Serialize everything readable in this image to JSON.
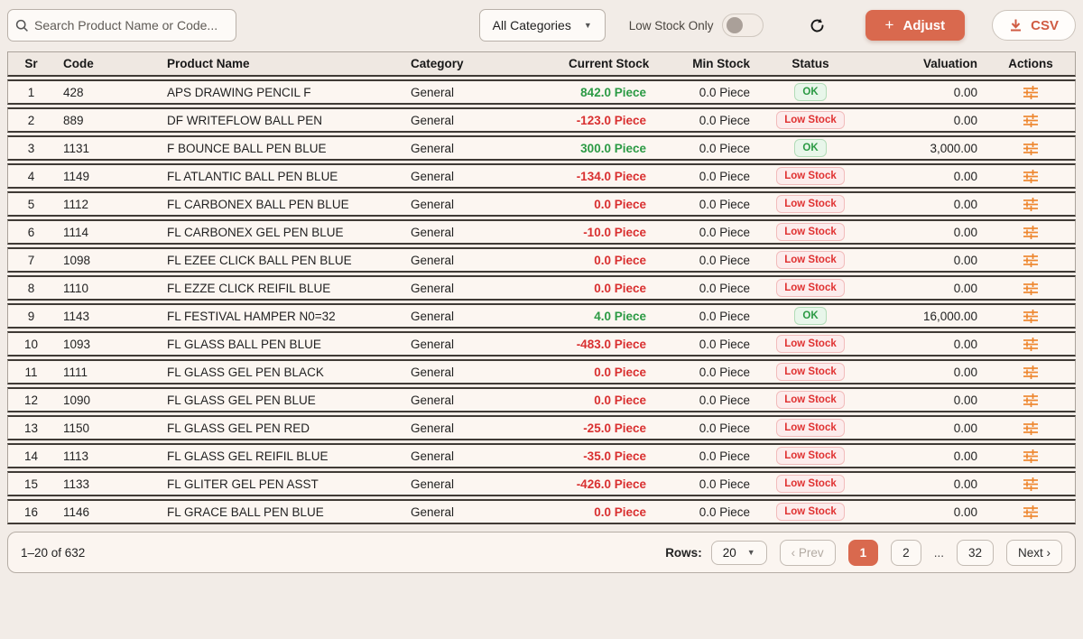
{
  "toolbar": {
    "search_placeholder": "Search Product Name or Code...",
    "category_filter_value": "All Categories",
    "low_stock_toggle_label": "Low Stock Only",
    "adjust_button_label": "Adjust",
    "adjust_button_plus": "+",
    "csv_button_label": "CSV"
  },
  "table": {
    "columns": [
      "Sr",
      "Code",
      "Product Name",
      "Category",
      "Current Stock",
      "Min Stock",
      "Status",
      "Valuation",
      "Actions"
    ],
    "rows": [
      {
        "sr": "1",
        "code": "428",
        "name": "APS DRAWING PENCIL F",
        "category": "General",
        "current_stock": "842.0 Piece",
        "positive": true,
        "min_stock": "0.0 Piece",
        "status": "OK",
        "valuation": "0.00"
      },
      {
        "sr": "2",
        "code": "889",
        "name": "DF WRITEFLOW BALL PEN",
        "category": "General",
        "current_stock": "-123.0 Piece",
        "positive": false,
        "min_stock": "0.0 Piece",
        "status": "Low Stock",
        "valuation": "0.00"
      },
      {
        "sr": "3",
        "code": "1131",
        "name": "F BOUNCE BALL PEN BLUE",
        "category": "General",
        "current_stock": "300.0 Piece",
        "positive": true,
        "min_stock": "0.0 Piece",
        "status": "OK",
        "valuation": "3,000.00"
      },
      {
        "sr": "4",
        "code": "1149",
        "name": "FL ATLANTIC BALL PEN BLUE",
        "category": "General",
        "current_stock": "-134.0 Piece",
        "positive": false,
        "min_stock": "0.0 Piece",
        "status": "Low Stock",
        "valuation": "0.00"
      },
      {
        "sr": "5",
        "code": "1112",
        "name": "FL CARBONEX BALL PEN BLUE",
        "category": "General",
        "current_stock": "0.0 Piece",
        "positive": false,
        "min_stock": "0.0 Piece",
        "status": "Low Stock",
        "valuation": "0.00"
      },
      {
        "sr": "6",
        "code": "1114",
        "name": "FL CARBONEX GEL PEN BLUE",
        "category": "General",
        "current_stock": "-10.0 Piece",
        "positive": false,
        "min_stock": "0.0 Piece",
        "status": "Low Stock",
        "valuation": "0.00"
      },
      {
        "sr": "7",
        "code": "1098",
        "name": "FL EZEE CLICK BALL PEN BLUE",
        "category": "General",
        "current_stock": "0.0 Piece",
        "positive": false,
        "min_stock": "0.0 Piece",
        "status": "Low Stock",
        "valuation": "0.00"
      },
      {
        "sr": "8",
        "code": "1110",
        "name": "FL EZZE CLICK REIFIL BLUE",
        "category": "General",
        "current_stock": "0.0 Piece",
        "positive": false,
        "min_stock": "0.0 Piece",
        "status": "Low Stock",
        "valuation": "0.00"
      },
      {
        "sr": "9",
        "code": "1143",
        "name": "FL FESTIVAL HAMPER N0=32",
        "category": "General",
        "current_stock": "4.0 Piece",
        "positive": true,
        "min_stock": "0.0 Piece",
        "status": "OK",
        "valuation": "16,000.00"
      },
      {
        "sr": "10",
        "code": "1093",
        "name": "FL GLASS BALL PEN BLUE",
        "category": "General",
        "current_stock": "-483.0 Piece",
        "positive": false,
        "min_stock": "0.0 Piece",
        "status": "Low Stock",
        "valuation": "0.00"
      },
      {
        "sr": "11",
        "code": "1111",
        "name": "FL GLASS GEL PEN BLACK",
        "category": "General",
        "current_stock": "0.0 Piece",
        "positive": false,
        "min_stock": "0.0 Piece",
        "status": "Low Stock",
        "valuation": "0.00"
      },
      {
        "sr": "12",
        "code": "1090",
        "name": "FL GLASS GEL PEN BLUE",
        "category": "General",
        "current_stock": "0.0 Piece",
        "positive": false,
        "min_stock": "0.0 Piece",
        "status": "Low Stock",
        "valuation": "0.00"
      },
      {
        "sr": "13",
        "code": "1150",
        "name": "FL GLASS GEL PEN RED",
        "category": "General",
        "current_stock": "-25.0 Piece",
        "positive": false,
        "min_stock": "0.0 Piece",
        "status": "Low Stock",
        "valuation": "0.00"
      },
      {
        "sr": "14",
        "code": "1113",
        "name": "FL GLASS GEL REIFIL BLUE",
        "category": "General",
        "current_stock": "-35.0 Piece",
        "positive": false,
        "min_stock": "0.0 Piece",
        "status": "Low Stock",
        "valuation": "0.00"
      },
      {
        "sr": "15",
        "code": "1133",
        "name": "FL GLITER GEL PEN ASST",
        "category": "General",
        "current_stock": "-426.0 Piece",
        "positive": false,
        "min_stock": "0.0 Piece",
        "status": "Low Stock",
        "valuation": "0.00"
      },
      {
        "sr": "16",
        "code": "1146",
        "name": "FL GRACE BALL PEN BLUE",
        "category": "General",
        "current_stock": "0.0 Piece",
        "positive": false,
        "min_stock": "0.0 Piece",
        "status": "Low Stock",
        "valuation": "0.00"
      }
    ]
  },
  "footer": {
    "range_text": "1–20 of 632",
    "rows_label": "Rows:",
    "rows_value": "20",
    "pagination": {
      "prev": "‹ Prev",
      "page_1": "1",
      "page_2": "2",
      "ellipsis": "...",
      "page_last": "32",
      "next": "Next ›",
      "active_page": "1"
    }
  },
  "colors": {
    "accent": "#d9694e",
    "positive_stock": "#2b9a44",
    "negative_stock": "#d93030",
    "action_icon": "#ee8730"
  }
}
